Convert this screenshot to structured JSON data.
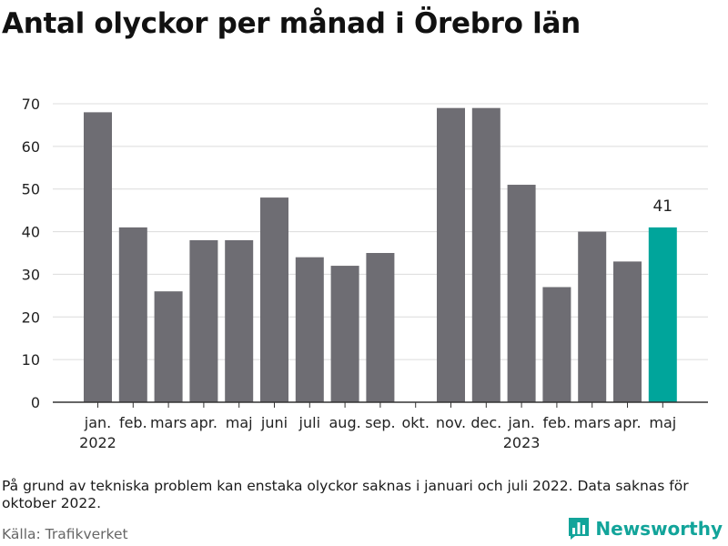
{
  "title": "Antal olyckor per månad i Örebro län",
  "note": "På grund av tekniska problem kan enstaka olyckor saknas i januari och juli 2022. Data saknas för oktober 2022.",
  "source": "Källa: Trafikverket",
  "brand": {
    "name": "Newsworthy",
    "icon": "bar-chart-logo-icon",
    "color": "#12a49a"
  },
  "chart_data": {
    "type": "bar",
    "categories": [
      "jan.",
      "feb.",
      "mars",
      "apr.",
      "maj",
      "juni",
      "juli",
      "aug.",
      "sep.",
      "okt.",
      "nov.",
      "dec.",
      "jan.",
      "feb.",
      "mars",
      "apr.",
      "maj"
    ],
    "year_labels": [
      {
        "index": 0,
        "label": "2022"
      },
      {
        "index": 12,
        "label": "2023"
      }
    ],
    "values": [
      68,
      41,
      26,
      38,
      38,
      48,
      34,
      32,
      35,
      null,
      69,
      69,
      51,
      27,
      40,
      33,
      41
    ],
    "highlight_index": 16,
    "highlight_label": "41",
    "colors": {
      "bar": "#6e6d73",
      "highlight": "#00a59b"
    },
    "ylim": [
      0,
      70
    ],
    "yticks": [
      0,
      10,
      20,
      30,
      40,
      50,
      60,
      70
    ],
    "grid": true,
    "legend": "none"
  }
}
